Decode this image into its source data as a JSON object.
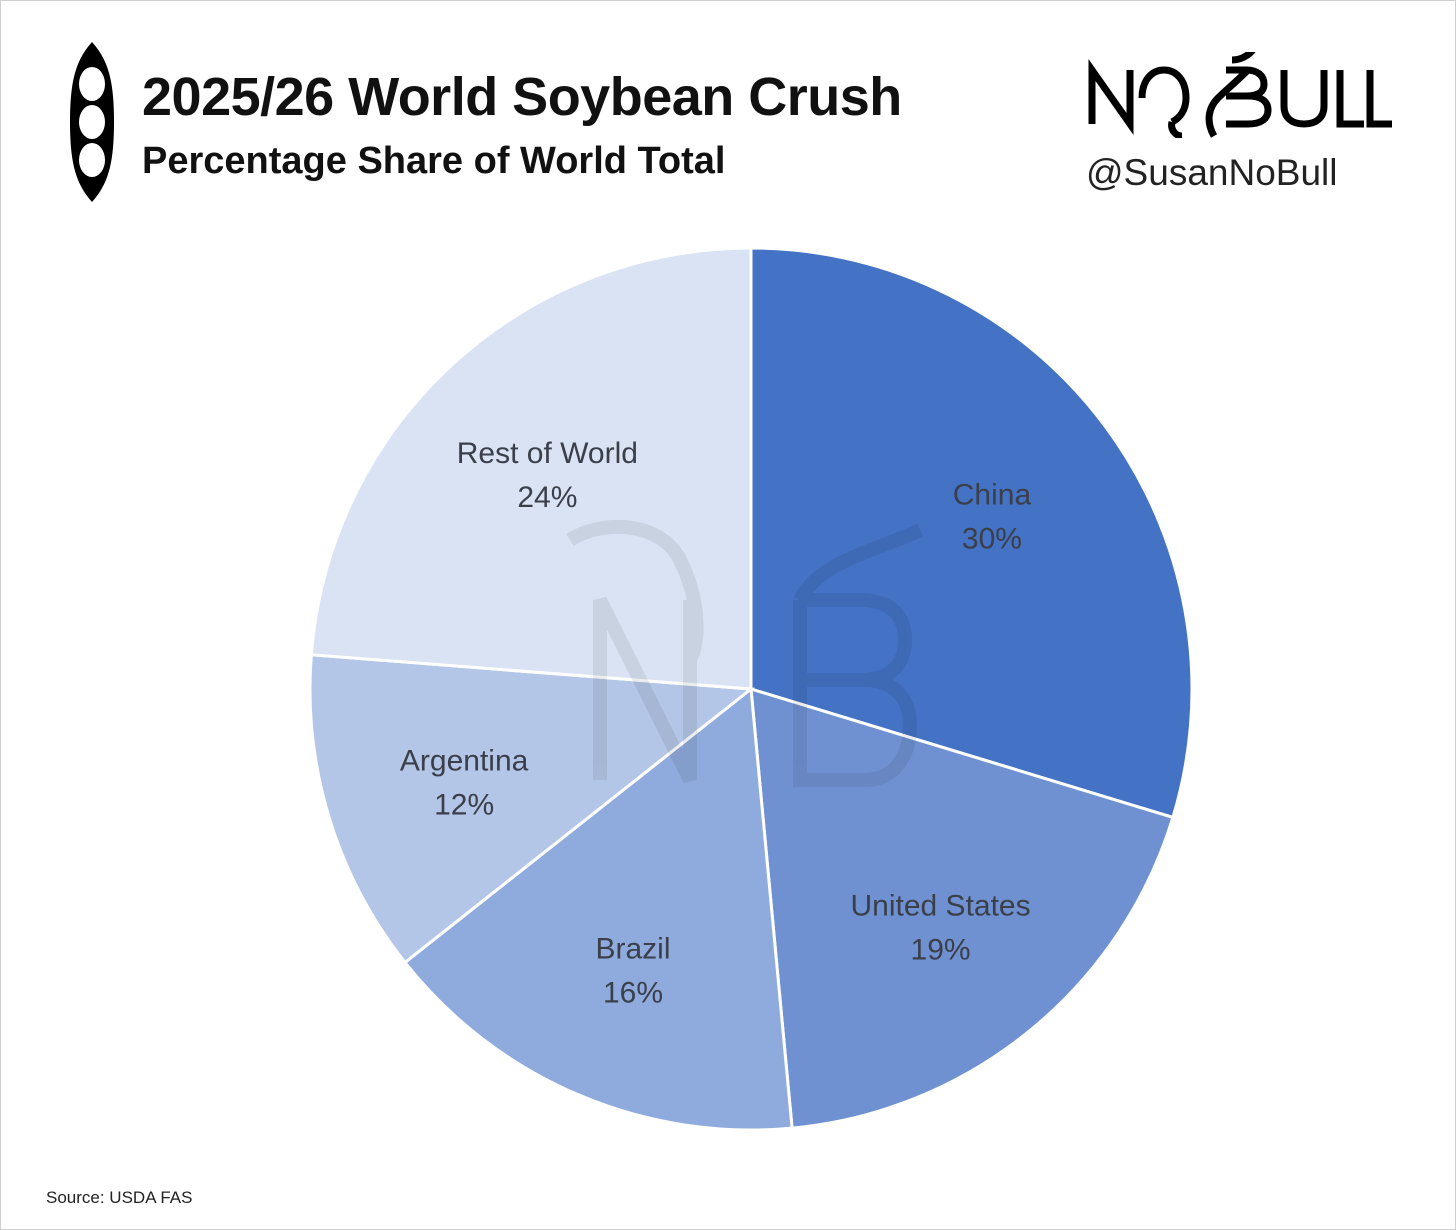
{
  "header": {
    "title": "2025/26 World Soybean Crush",
    "subtitle": "Percentage Share of World Total",
    "brand": "NO BULL",
    "handle": "@SusanNoBull"
  },
  "icons": {
    "pod": "soybean-pod-icon",
    "brand": "nobull-logo",
    "watermark": "nb-watermark"
  },
  "footer": {
    "source": "Source: USDA FAS"
  },
  "chart_data": {
    "type": "pie",
    "title": "2025/26 World Soybean Crush",
    "subtitle": "Percentage Share of World Total",
    "start_angle_deg": 0,
    "direction": "clockwise",
    "legend": "none",
    "slices": [
      {
        "label": "China",
        "value": 30,
        "display": "30%",
        "color": "#4472c4"
      },
      {
        "label": "United States",
        "value": 19,
        "display": "19%",
        "color": "#6f91d1"
      },
      {
        "label": "Brazil",
        "value": 16,
        "display": "16%",
        "color": "#8faadc"
      },
      {
        "label": "Argentina",
        "value": 12,
        "display": "12%",
        "color": "#b4c6e7"
      },
      {
        "label": "Rest of World",
        "value": 24,
        "display": "24%",
        "color": "#dae3f3"
      }
    ]
  }
}
